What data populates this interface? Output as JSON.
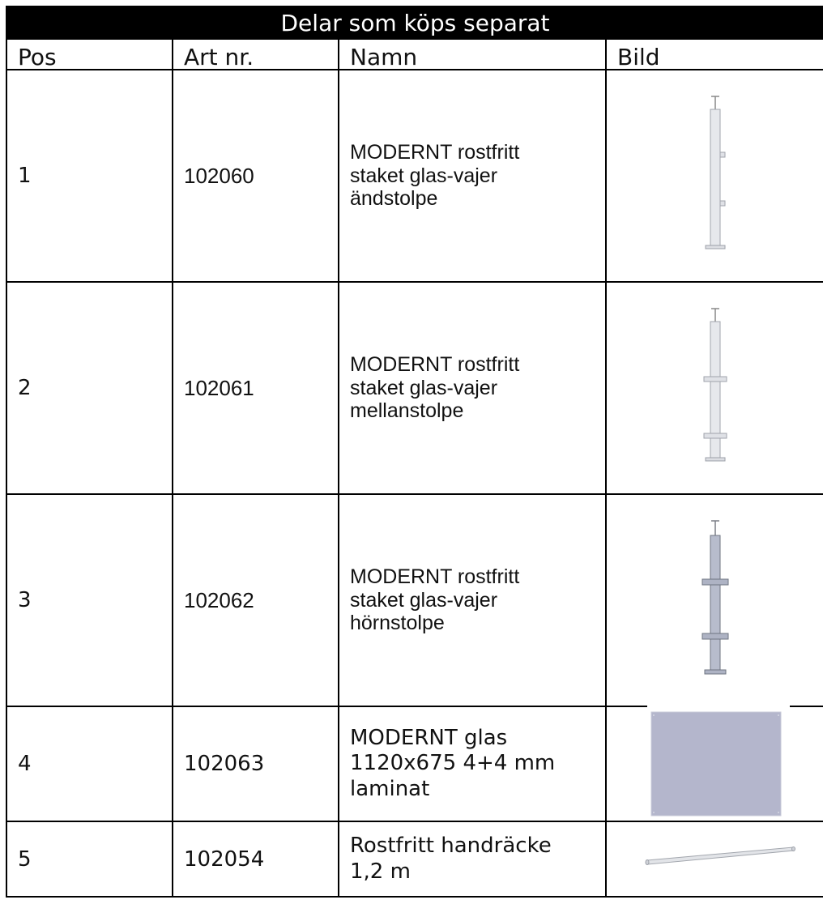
{
  "table": {
    "title": "Delar som köps separat",
    "headers": {
      "pos": "Pos",
      "art": "Art nr.",
      "name": "Namn",
      "image": "Bild"
    },
    "rows": [
      {
        "pos": "1",
        "art": "102060",
        "name": [
          "MODERNT rostfritt",
          "staket glas-vajer",
          "ändstolpe"
        ],
        "image_icon": "end-post-icon"
      },
      {
        "pos": "2",
        "art": "102061",
        "name": [
          "MODERNT rostfritt",
          "staket glas-vajer",
          "mellanstolpe"
        ],
        "image_icon": "middle-post-icon"
      },
      {
        "pos": "3",
        "art": "102062",
        "name": [
          "MODERNT rostfritt",
          "staket glas-vajer",
          "hörnstolpe"
        ],
        "image_icon": "corner-post-icon"
      },
      {
        "pos": "4",
        "art": "102063",
        "name": [
          "MODERNT glas",
          "1120x675 4+4 mm",
          "laminat"
        ],
        "image_icon": "glass-panel-icon"
      },
      {
        "pos": "5",
        "art": "102054",
        "name": [
          "Rostfritt handräcke",
          "1,2 m"
        ],
        "image_icon": "handrail-icon"
      }
    ]
  },
  "colors": {
    "header_bg": "#000000",
    "header_text": "#ffffff",
    "glass": "#b4b6cc",
    "steel": "#e4e6ea",
    "steel_dark": "#9ca0a8"
  }
}
